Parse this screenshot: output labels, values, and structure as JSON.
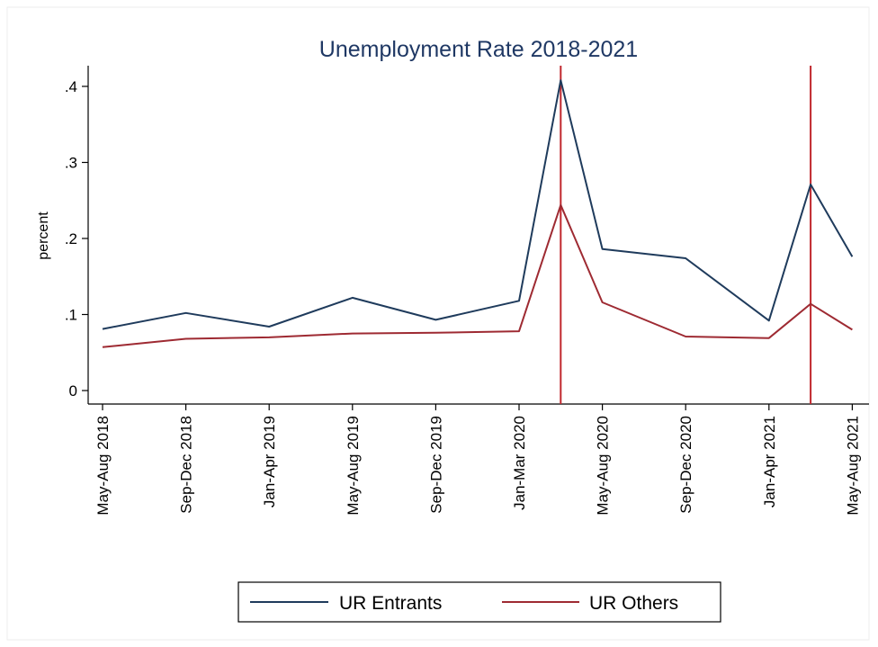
{
  "chart_data": {
    "type": "line",
    "title": "Unemployment Rate 2018-2021",
    "xlabel": "",
    "ylabel": "percent",
    "ylim": [
      0,
      0.4
    ],
    "yticks": [
      {
        "value": 0,
        "label": "0"
      },
      {
        "value": 0.1,
        "label": ".1"
      },
      {
        "value": 0.2,
        "label": ".2"
      },
      {
        "value": 0.3,
        "label": ".3"
      },
      {
        "value": 0.4,
        "label": ".4"
      }
    ],
    "categories": [
      "May-Aug 2018",
      "Sep-Dec 2018",
      "Jan-Apr 2019",
      "May-Aug 2019",
      "Sep-Dec 2019",
      "Jan-Mar 2020",
      "May-Aug 2020",
      "Sep-Dec 2020",
      "Jan-Apr 2021",
      "May-Aug 2021"
    ],
    "x": [
      0,
      1,
      2,
      3,
      4,
      5,
      5.5,
      6,
      7,
      8,
      8.5,
      9
    ],
    "series": [
      {
        "name": "UR Entrants",
        "color": "#1f3b5c",
        "values": [
          0.081,
          0.102,
          0.084,
          0.122,
          0.093,
          0.118,
          0.408,
          0.186,
          0.174,
          0.092,
          0.271,
          0.176
        ]
      },
      {
        "name": "UR Others",
        "color": "#9e2a32",
        "values": [
          0.057,
          0.068,
          0.07,
          0.075,
          0.076,
          0.078,
          0.244,
          0.116,
          0.071,
          0.069,
          0.114,
          0.08
        ]
      }
    ],
    "vlines": [
      5.5,
      8.5
    ],
    "vline_color": "#c0272d",
    "grid": false,
    "legend_position": "bottom"
  }
}
